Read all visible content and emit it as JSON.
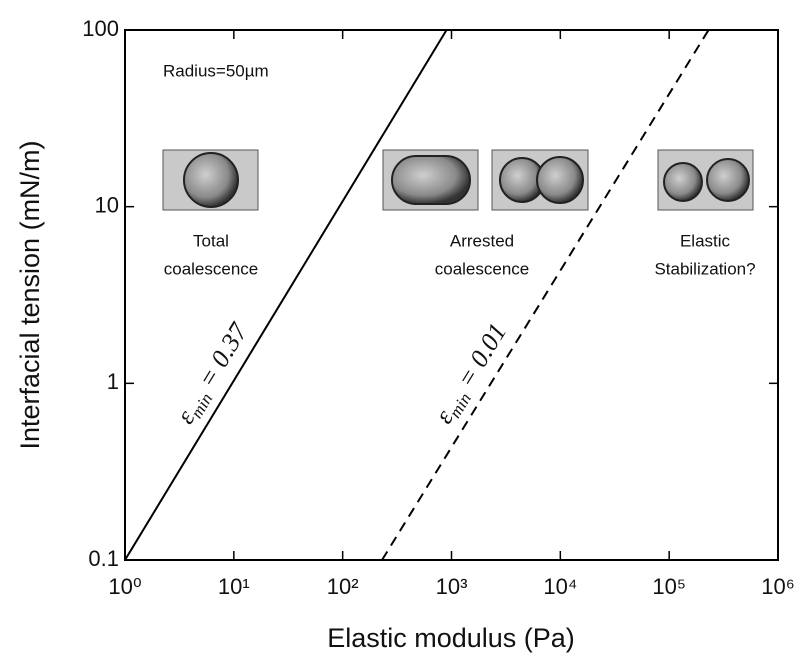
{
  "chart_data": {
    "type": "line",
    "x_label": "Elastic modulus (Pa)",
    "y_label": "Interfacial  tension (mN/m)",
    "xscale": "log",
    "yscale": "log",
    "xlim": [
      1,
      1000000
    ],
    "ylim": [
      0.1,
      100
    ],
    "xticks": [
      {
        "value": 1,
        "label": "10⁰"
      },
      {
        "value": 10,
        "label": "10¹"
      },
      {
        "value": 100,
        "label": "10²"
      },
      {
        "value": 1000,
        "label": "10³"
      },
      {
        "value": 10000,
        "label": "10⁴"
      },
      {
        "value": 100000,
        "label": "10⁵"
      },
      {
        "value": 1000000,
        "label": "10⁶"
      }
    ],
    "yticks": [
      0.1,
      1,
      10,
      100
    ],
    "series": [
      {
        "color": "#000000",
        "dashed": false,
        "x": [
          1,
          900
        ],
        "values": [
          0.1,
          100
        ],
        "label": {
          "symbol": "ε",
          "subscript": "min",
          "text": " = 0.37"
        }
      },
      {
        "color": "#000000",
        "dashed": true,
        "x": [
          230,
          230000
        ],
        "values": [
          0.1,
          100
        ],
        "label": {
          "symbol": "ε",
          "subscript": "min",
          "text": " = 0.01"
        }
      }
    ],
    "annotations": [
      {
        "lines": [
          "Radius=50µm"
        ]
      },
      {
        "lines": [
          "Total",
          "coalescence"
        ]
      },
      {
        "lines": [
          "Arrested",
          "coalescence"
        ]
      },
      {
        "lines": [
          "Elastic",
          "Stabilization?"
        ]
      }
    ]
  }
}
